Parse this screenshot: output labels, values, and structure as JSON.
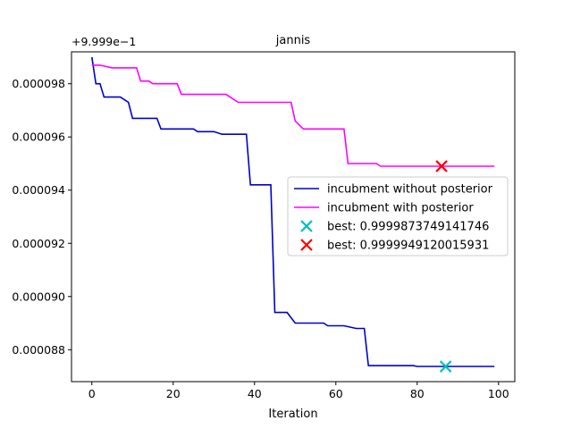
{
  "chart_data": {
    "type": "line",
    "title": "jannis",
    "xlabel": "Iteration",
    "ylabel": "",
    "offset_label": "+9.999e−1",
    "xlim": [
      -5,
      104
    ],
    "ylim": [
      8.68e-05,
      9.92e-05
    ],
    "xticks": [
      0,
      20,
      40,
      60,
      80,
      100
    ],
    "xtick_labels": [
      "0",
      "20",
      "40",
      "60",
      "80",
      "100"
    ],
    "yticks": [
      8.8e-05,
      9e-05,
      9.2e-05,
      9.4e-05,
      9.6e-05,
      9.8e-05
    ],
    "ytick_labels": [
      "0.000088",
      "0.000090",
      "0.000092",
      "0.000094",
      "0.000096",
      "0.000098"
    ],
    "grid": false,
    "legend_position": "center-right",
    "series": [
      {
        "name": "incubment without posterior",
        "color": "#0000cc",
        "points": [
          [
            0,
            9.9e-05
          ],
          [
            1,
            9.8e-05
          ],
          [
            2,
            9.8e-05
          ],
          [
            3,
            9.75e-05
          ],
          [
            5,
            9.75e-05
          ],
          [
            7,
            9.75e-05
          ],
          [
            9,
            9.73e-05
          ],
          [
            10,
            9.67e-05
          ],
          [
            11,
            9.67e-05
          ],
          [
            16,
            9.67e-05
          ],
          [
            17,
            9.63e-05
          ],
          [
            25,
            9.63e-05
          ],
          [
            26,
            9.62e-05
          ],
          [
            30,
            9.62e-05
          ],
          [
            32,
            9.61e-05
          ],
          [
            38,
            9.61e-05
          ],
          [
            39,
            9.42e-05
          ],
          [
            44,
            9.42e-05
          ],
          [
            45,
            8.94e-05
          ],
          [
            48,
            8.94e-05
          ],
          [
            50,
            8.9e-05
          ],
          [
            57,
            8.9e-05
          ],
          [
            58,
            8.89e-05
          ],
          [
            62,
            8.89e-05
          ],
          [
            65,
            8.88e-05
          ],
          [
            67,
            8.88e-05
          ],
          [
            68,
            8.74e-05
          ],
          [
            79,
            8.74e-05
          ],
          [
            80,
            8.737e-05
          ],
          [
            99,
            8.737e-05
          ]
        ]
      },
      {
        "name": "incubment with posterior",
        "color": "#ff00ff",
        "points": [
          [
            0,
            9.87e-05
          ],
          [
            2,
            9.87e-05
          ],
          [
            5,
            9.86e-05
          ],
          [
            6,
            9.86e-05
          ],
          [
            11,
            9.86e-05
          ],
          [
            12,
            9.81e-05
          ],
          [
            14,
            9.81e-05
          ],
          [
            15,
            9.8e-05
          ],
          [
            19,
            9.8e-05
          ],
          [
            21,
            9.8e-05
          ],
          [
            22,
            9.76e-05
          ],
          [
            33,
            9.76e-05
          ],
          [
            35,
            9.74e-05
          ],
          [
            36,
            9.73e-05
          ],
          [
            40,
            9.73e-05
          ],
          [
            49,
            9.73e-05
          ],
          [
            50,
            9.66e-05
          ],
          [
            52,
            9.63e-05
          ],
          [
            62,
            9.63e-05
          ],
          [
            63,
            9.5e-05
          ],
          [
            70,
            9.5e-05
          ],
          [
            71,
            9.49e-05
          ],
          [
            99,
            9.49e-05
          ]
        ]
      }
    ],
    "markers": [
      {
        "name": "best: 0.9999873749141746",
        "x": 87,
        "y": 8.737e-05,
        "color": "#00bfbf",
        "shape": "x"
      },
      {
        "name": "best: 0.9999949120015931",
        "x": 86,
        "y": 9.49e-05,
        "color": "#ff0000",
        "shape": "x"
      }
    ]
  }
}
